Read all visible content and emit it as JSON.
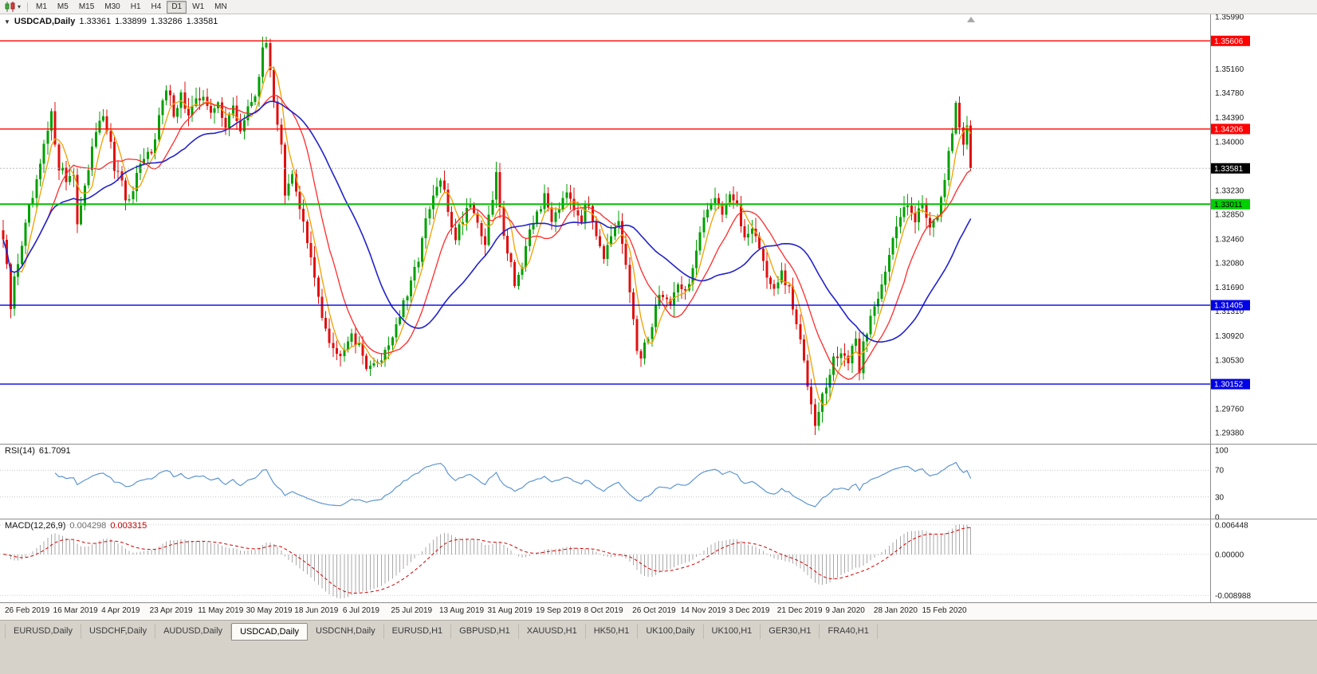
{
  "icons": {
    "collapse": "▼",
    "caret": "▾",
    "shift_marker": "▲"
  },
  "toolbar": {
    "chart_icon": "candlestick-chart-icon",
    "timeframes": [
      {
        "label": "M1",
        "active": false
      },
      {
        "label": "M5",
        "active": false
      },
      {
        "label": "M15",
        "active": false
      },
      {
        "label": "M30",
        "active": false
      },
      {
        "label": "H1",
        "active": false
      },
      {
        "label": "H4",
        "active": false
      },
      {
        "label": "D1",
        "active": true
      },
      {
        "label": "W1",
        "active": false
      },
      {
        "label": "MN",
        "active": false
      }
    ]
  },
  "chart": {
    "symbol": "USDCAD,Daily",
    "open": "1.33361",
    "high": "1.33899",
    "low": "1.33286",
    "close": "1.33581"
  },
  "colors": {
    "up": "#00a000",
    "down": "#e01010",
    "ma_fast": "#f0a000",
    "ma_mid": "#ff2a2a",
    "ma_slow": "#2222cc",
    "rsi": "#5e96d2",
    "macd_hist": "#a8a8a8",
    "macd_signal": "#d40000",
    "sep": "#8c8c8c",
    "current_line": "#bbbbbb",
    "level_red": "#ff0000",
    "level_green": "#00c000",
    "level_blue": "#0000e6"
  },
  "price_axis": {
    "ticks": [
      "1.35990",
      "1.35160",
      "1.34780",
      "1.34390",
      "1.34000",
      "1.33230",
      "1.32850",
      "1.32460",
      "1.32080",
      "1.31690",
      "1.31310",
      "1.30920",
      "1.30530",
      "1.29760",
      "1.29380"
    ],
    "lines": [
      {
        "price": 1.35606,
        "label": "1.35606",
        "line": "#ff0000",
        "box": "#ff0000",
        "text": "#ffffff",
        "width": 1.4,
        "dash": ""
      },
      {
        "price": 1.34206,
        "label": "1.34206",
        "line": "#ff0000",
        "box": "#ff0000",
        "text": "#ffffff",
        "width": 1.4,
        "dash": ""
      },
      {
        "price": 1.33581,
        "label": "1.33581",
        "line": "#bbbbbb",
        "box": "#000000",
        "text": "#ffffff",
        "width": 1,
        "dash": "2,2"
      },
      {
        "price": 1.33011,
        "label": "1.33011",
        "line": "#00c000",
        "box": "#00d000",
        "text": "#000000",
        "width": 2,
        "dash": ""
      },
      {
        "price": 1.31405,
        "label": "1.31405",
        "line": "#0000e6",
        "box": "#0000e6",
        "text": "#ffffff",
        "width": 1.4,
        "dash": ""
      },
      {
        "price": 1.30152,
        "label": "1.30152",
        "line": "#0000e6",
        "box": "#0000e6",
        "text": "#ffffff",
        "width": 1.4,
        "dash": ""
      }
    ]
  },
  "rsi": {
    "name": "RSI(14)",
    "value": "61.7091",
    "axis": [
      {
        "label": "100",
        "v": 100
      },
      {
        "label": "70",
        "v": 70
      },
      {
        "label": "30",
        "v": 30
      },
      {
        "label": "0",
        "v": 0
      }
    ],
    "levels": [
      70,
      30
    ]
  },
  "macd": {
    "name": "MACD(12,26,9)",
    "value_main": "0.004298",
    "value_signal": "0.003315",
    "axis": [
      {
        "label": "0.006448",
        "v": 0.006448
      },
      {
        "label": "0.00000",
        "v": 0
      },
      {
        "label": "-0.008988",
        "v": -0.008988
      }
    ]
  },
  "dates": [
    "26 Feb 2019",
    "16 Mar 2019",
    "4 Apr 2019",
    "23 Apr 2019",
    "11 May 2019",
    "30 May 2019",
    "18 Jun 2019",
    "6 Jul 2019",
    "25 Jul 2019",
    "13 Aug 2019",
    "31 Aug 2019",
    "19 Sep 2019",
    "8 Oct 2019",
    "26 Oct 2019",
    "14 Nov 2019",
    "3 Dec 2019",
    "21 Dec 2019",
    "9 Jan 2020",
    "28 Jan 2020",
    "15 Feb 2020"
  ],
  "tabs": [
    {
      "label": "EURUSD,Daily",
      "active": false
    },
    {
      "label": "USDCHF,Daily",
      "active": false
    },
    {
      "label": "AUDUSD,Daily",
      "active": false
    },
    {
      "label": "USDCAD,Daily",
      "active": true
    },
    {
      "label": "USDCNH,Daily",
      "active": false
    },
    {
      "label": "EURUSD,H1",
      "active": false
    },
    {
      "label": "GBPUSD,H1",
      "active": false
    },
    {
      "label": "XAUUSD,H1",
      "active": false
    },
    {
      "label": "HK50,H1",
      "active": false
    },
    {
      "label": "UK100,Daily",
      "active": false
    },
    {
      "label": "UK100,H1",
      "active": false
    },
    {
      "label": "GER30,H1",
      "active": false
    },
    {
      "label": "FRA40,H1",
      "active": false
    }
  ],
  "chart_data": {
    "type": "candlestick",
    "symbol": "USDCAD",
    "timeframe": "Daily",
    "count": 262,
    "x_range": [
      "26 Feb 2019",
      "26 Feb 2020"
    ],
    "price_range": [
      1.292,
      1.3603
    ],
    "current_price": 1.33581,
    "hlines": [
      1.35606,
      1.34206,
      1.33011,
      1.31405,
      1.30152
    ],
    "indicators": [
      {
        "type": "sma",
        "period": 5
      },
      {
        "type": "sma",
        "period": 13
      },
      {
        "type": "sma",
        "period": 30
      },
      {
        "type": "rsi",
        "period": 14,
        "current": 61.7091
      },
      {
        "type": "macd",
        "params": [
          12,
          26,
          9
        ],
        "current": [
          0.004298,
          0.003315
        ]
      }
    ],
    "anchors": [
      [
        0,
        1.3245
      ],
      [
        1,
        1.3195
      ],
      [
        2,
        1.3135
      ],
      [
        3,
        1.318
      ],
      [
        5,
        1.324
      ],
      [
        7,
        1.329
      ],
      [
        9,
        1.333
      ],
      [
        11,
        1.339
      ],
      [
        13,
        1.344
      ],
      [
        15,
        1.3365
      ],
      [
        17,
        1.334
      ],
      [
        19,
        1.3355
      ],
      [
        20,
        1.327
      ],
      [
        22,
        1.332
      ],
      [
        24,
        1.34
      ],
      [
        26,
        1.344
      ],
      [
        28,
        1.342
      ],
      [
        30,
        1.336
      ],
      [
        32,
        1.333
      ],
      [
        34,
        1.33
      ],
      [
        36,
        1.334
      ],
      [
        38,
        1.337
      ],
      [
        40,
        1.339
      ],
      [
        42,
        1.344
      ],
      [
        44,
        1.348
      ],
      [
        46,
        1.345
      ],
      [
        48,
        1.3475
      ],
      [
        50,
        1.344
      ],
      [
        52,
        1.346
      ],
      [
        54,
        1.348
      ],
      [
        56,
        1.344
      ],
      [
        58,
        1.346
      ],
      [
        60,
        1.343
      ],
      [
        62,
        1.345
      ],
      [
        64,
        1.342
      ],
      [
        66,
        1.345
      ],
      [
        68,
        1.348
      ],
      [
        70,
        1.354
      ],
      [
        71,
        1.3555
      ],
      [
        72,
        1.352
      ],
      [
        73,
        1.347
      ],
      [
        75,
        1.339
      ],
      [
        76,
        1.331
      ],
      [
        78,
        1.3345
      ],
      [
        80,
        1.33
      ],
      [
        82,
        1.324
      ],
      [
        84,
        1.318
      ],
      [
        86,
        1.313
      ],
      [
        88,
        1.309
      ],
      [
        90,
        1.306
      ],
      [
        92,
        1.308
      ],
      [
        94,
        1.31
      ],
      [
        96,
        1.307
      ],
      [
        98,
        1.305
      ],
      [
        100,
        1.304
      ],
      [
        102,
        1.306
      ],
      [
        104,
        1.308
      ],
      [
        106,
        1.311
      ],
      [
        108,
        1.314
      ],
      [
        110,
        1.317
      ],
      [
        112,
        1.322
      ],
      [
        114,
        1.327
      ],
      [
        116,
        1.331
      ],
      [
        118,
        1.334
      ],
      [
        120,
        1.329
      ],
      [
        122,
        1.325
      ],
      [
        124,
        1.328
      ],
      [
        126,
        1.331
      ],
      [
        128,
        1.327
      ],
      [
        130,
        1.324
      ],
      [
        132,
        1.331
      ],
      [
        133,
        1.335
      ],
      [
        134,
        1.329
      ],
      [
        136,
        1.323
      ],
      [
        138,
        1.318
      ],
      [
        140,
        1.32
      ],
      [
        142,
        1.325
      ],
      [
        144,
        1.329
      ],
      [
        146,
        1.331
      ],
      [
        148,
        1.328
      ],
      [
        150,
        1.33
      ],
      [
        152,
        1.333
      ],
      [
        154,
        1.33
      ],
      [
        156,
        1.328
      ],
      [
        158,
        1.33
      ],
      [
        160,
        1.326
      ],
      [
        162,
        1.322
      ],
      [
        164,
        1.324
      ],
      [
        166,
        1.327
      ],
      [
        168,
        1.32
      ],
      [
        170,
        1.312
      ],
      [
        171,
        1.307
      ],
      [
        172,
        1.305
      ],
      [
        174,
        1.309
      ],
      [
        176,
        1.314
      ],
      [
        178,
        1.316
      ],
      [
        180,
        1.314
      ],
      [
        182,
        1.318
      ],
      [
        184,
        1.316
      ],
      [
        186,
        1.32
      ],
      [
        188,
        1.325
      ],
      [
        190,
        1.329
      ],
      [
        192,
        1.332
      ],
      [
        194,
        1.329
      ],
      [
        196,
        1.332
      ],
      [
        198,
        1.329
      ],
      [
        200,
        1.325
      ],
      [
        202,
        1.327
      ],
      [
        204,
        1.323
      ],
      [
        206,
        1.319
      ],
      [
        208,
        1.316
      ],
      [
        210,
        1.319
      ],
      [
        212,
        1.316
      ],
      [
        214,
        1.311
      ],
      [
        216,
        1.305
      ],
      [
        218,
        1.299
      ],
      [
        219,
        1.296
      ],
      [
        220,
        1.298
      ],
      [
        222,
        1.301
      ],
      [
        224,
        1.305
      ],
      [
        226,
        1.307
      ],
      [
        228,
        1.305
      ],
      [
        230,
        1.308
      ],
      [
        231,
        1.304
      ],
      [
        232,
        1.308
      ],
      [
        234,
        1.312
      ],
      [
        236,
        1.316
      ],
      [
        238,
        1.32
      ],
      [
        240,
        1.324
      ],
      [
        242,
        1.328
      ],
      [
        244,
        1.331
      ],
      [
        246,
        1.328
      ],
      [
        248,
        1.33
      ],
      [
        250,
        1.327
      ],
      [
        252,
        1.329
      ],
      [
        254,
        1.333
      ],
      [
        256,
        1.342
      ],
      [
        257,
        1.346
      ],
      [
        258,
        1.343
      ],
      [
        259,
        1.34
      ],
      [
        260,
        1.343
      ],
      [
        261,
        1.33581
      ]
    ]
  }
}
